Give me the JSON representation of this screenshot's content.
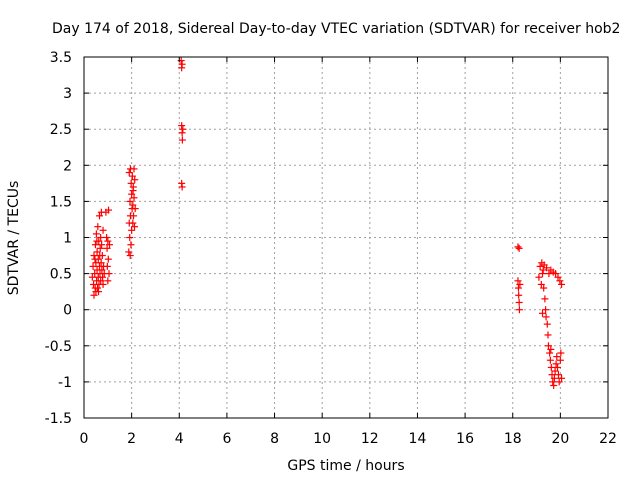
{
  "chart_data": {
    "type": "scatter",
    "title": "Day 174 of 2018, Sidereal Day-to-day VTEC variation (SDTVAR) for receiver hob2",
    "xlabel": "GPS time / hours",
    "ylabel": "SDTVAR / TECUs",
    "xlim": [
      0,
      22
    ],
    "ylim": [
      -1.5,
      3.5
    ],
    "grid": true,
    "marker": "+",
    "color": "#ff0000",
    "x_ticks": [
      "0",
      "2",
      "4",
      "6",
      "8",
      "10",
      "12",
      "14",
      "16",
      "18",
      "20",
      "22"
    ],
    "y_ticks": [
      "3.5",
      "3",
      "2.5",
      "2",
      "1.5",
      "1",
      "0.5",
      "0",
      "-0.5",
      "-1",
      "-1.5"
    ],
    "series": [
      {
        "name": "hob2",
        "points": [
          [
            0.35,
            0.45
          ],
          [
            0.38,
            0.6
          ],
          [
            0.4,
            0.35
          ],
          [
            0.42,
            0.75
          ],
          [
            0.45,
            0.5
          ],
          [
            0.47,
            0.3
          ],
          [
            0.48,
            0.9
          ],
          [
            0.5,
            0.65
          ],
          [
            0.5,
            0.25
          ],
          [
            0.52,
            1.05
          ],
          [
            0.53,
            0.4
          ],
          [
            0.55,
            0.8
          ],
          [
            0.55,
            0.55
          ],
          [
            0.57,
            0.3
          ],
          [
            0.58,
            1.15
          ],
          [
            0.6,
            0.7
          ],
          [
            0.6,
            0.45
          ],
          [
            0.62,
            0.95
          ],
          [
            0.63,
            0.35
          ],
          [
            0.65,
            0.6
          ],
          [
            0.65,
            1.3
          ],
          [
            0.67,
            0.5
          ],
          [
            0.68,
            0.85
          ],
          [
            0.7,
            0.4
          ],
          [
            0.7,
            1.0
          ],
          [
            0.72,
            0.65
          ],
          [
            0.73,
            1.35
          ],
          [
            0.75,
            0.55
          ],
          [
            0.77,
            0.75
          ],
          [
            0.78,
            0.45
          ],
          [
            0.8,
            1.1
          ],
          [
            0.8,
            0.35
          ],
          [
            0.82,
            0.6
          ],
          [
            0.85,
            0.5
          ],
          [
            0.42,
            0.2
          ],
          [
            0.46,
            0.7
          ],
          [
            0.54,
            0.95
          ],
          [
            0.61,
            0.25
          ],
          [
            0.66,
            0.75
          ],
          [
            0.74,
            0.9
          ],
          [
            0.92,
            1.35
          ],
          [
            0.95,
            1.0
          ],
          [
            0.97,
            0.85
          ],
          [
            0.98,
            0.6
          ],
          [
            1.0,
            0.4
          ],
          [
            1.0,
            0.95
          ],
          [
            1.02,
            0.7
          ],
          [
            1.03,
            1.38
          ],
          [
            1.05,
            0.5
          ],
          [
            1.07,
            0.9
          ],
          [
            1.88,
            0.8
          ],
          [
            1.9,
            1.2
          ],
          [
            1.9,
            1.9
          ],
          [
            1.92,
            1.0
          ],
          [
            1.93,
            1.5
          ],
          [
            1.95,
            1.95
          ],
          [
            1.95,
            1.3
          ],
          [
            1.97,
            0.9
          ],
          [
            1.98,
            1.75
          ],
          [
            2.0,
            1.1
          ],
          [
            2.0,
            1.6
          ],
          [
            2.02,
            1.4
          ],
          [
            2.03,
            1.85
          ],
          [
            2.05,
            1.2
          ],
          [
            2.05,
            1.45
          ],
          [
            2.07,
            1.7
          ],
          [
            2.08,
            1.3
          ],
          [
            2.1,
            1.55
          ],
          [
            2.1,
            1.95
          ],
          [
            2.12,
            1.15
          ],
          [
            2.13,
            1.8
          ],
          [
            2.15,
            1.4
          ],
          [
            1.94,
            0.75
          ],
          [
            2.06,
            1.65
          ],
          [
            4.08,
            3.45
          ],
          [
            4.1,
            3.35
          ],
          [
            4.12,
            3.4
          ],
          [
            4.1,
            2.55
          ],
          [
            4.12,
            2.45
          ],
          [
            4.13,
            2.35
          ],
          [
            4.15,
            2.5
          ],
          [
            4.1,
            1.75
          ],
          [
            4.12,
            1.7
          ],
          [
            18.22,
            0.87
          ],
          [
            18.27,
            0.85
          ],
          [
            18.22,
            0.4
          ],
          [
            18.24,
            0.3
          ],
          [
            18.25,
            0.2
          ],
          [
            18.27,
            0.1
          ],
          [
            18.28,
            0.0
          ],
          [
            18.3,
            0.35
          ],
          [
            19.1,
            0.45
          ],
          [
            19.15,
            0.6
          ],
          [
            19.2,
            0.35
          ],
          [
            19.22,
            0.65
          ],
          [
            19.25,
            0.5
          ],
          [
            19.28,
            0.55
          ],
          [
            19.3,
            0.3
          ],
          [
            19.32,
            0.62
          ],
          [
            19.35,
            0.15
          ],
          [
            19.38,
            0.0
          ],
          [
            19.4,
            -0.1
          ],
          [
            19.42,
            0.58
          ],
          [
            19.45,
            -0.2
          ],
          [
            19.48,
            -0.35
          ],
          [
            19.5,
            -0.5
          ],
          [
            19.52,
            0.5
          ],
          [
            19.55,
            -0.6
          ],
          [
            19.58,
            -0.7
          ],
          [
            19.6,
            0.55
          ],
          [
            19.62,
            -0.8
          ],
          [
            19.65,
            -0.9
          ],
          [
            19.68,
            -1.0
          ],
          [
            19.7,
            0.52
          ],
          [
            19.72,
            -1.05
          ],
          [
            19.75,
            -0.95
          ],
          [
            19.78,
            -0.85
          ],
          [
            19.8,
            0.5
          ],
          [
            19.82,
            -0.75
          ],
          [
            19.85,
            -0.65
          ],
          [
            19.88,
            -0.8
          ],
          [
            19.9,
            0.45
          ],
          [
            19.92,
            -0.9
          ],
          [
            19.95,
            -1.0
          ],
          [
            19.98,
            0.4
          ],
          [
            20.0,
            -0.7
          ],
          [
            20.02,
            -0.6
          ],
          [
            20.05,
            0.35
          ],
          [
            20.05,
            -0.95
          ],
          [
            19.25,
            -0.05
          ],
          [
            19.6,
            -0.55
          ]
        ]
      }
    ]
  }
}
